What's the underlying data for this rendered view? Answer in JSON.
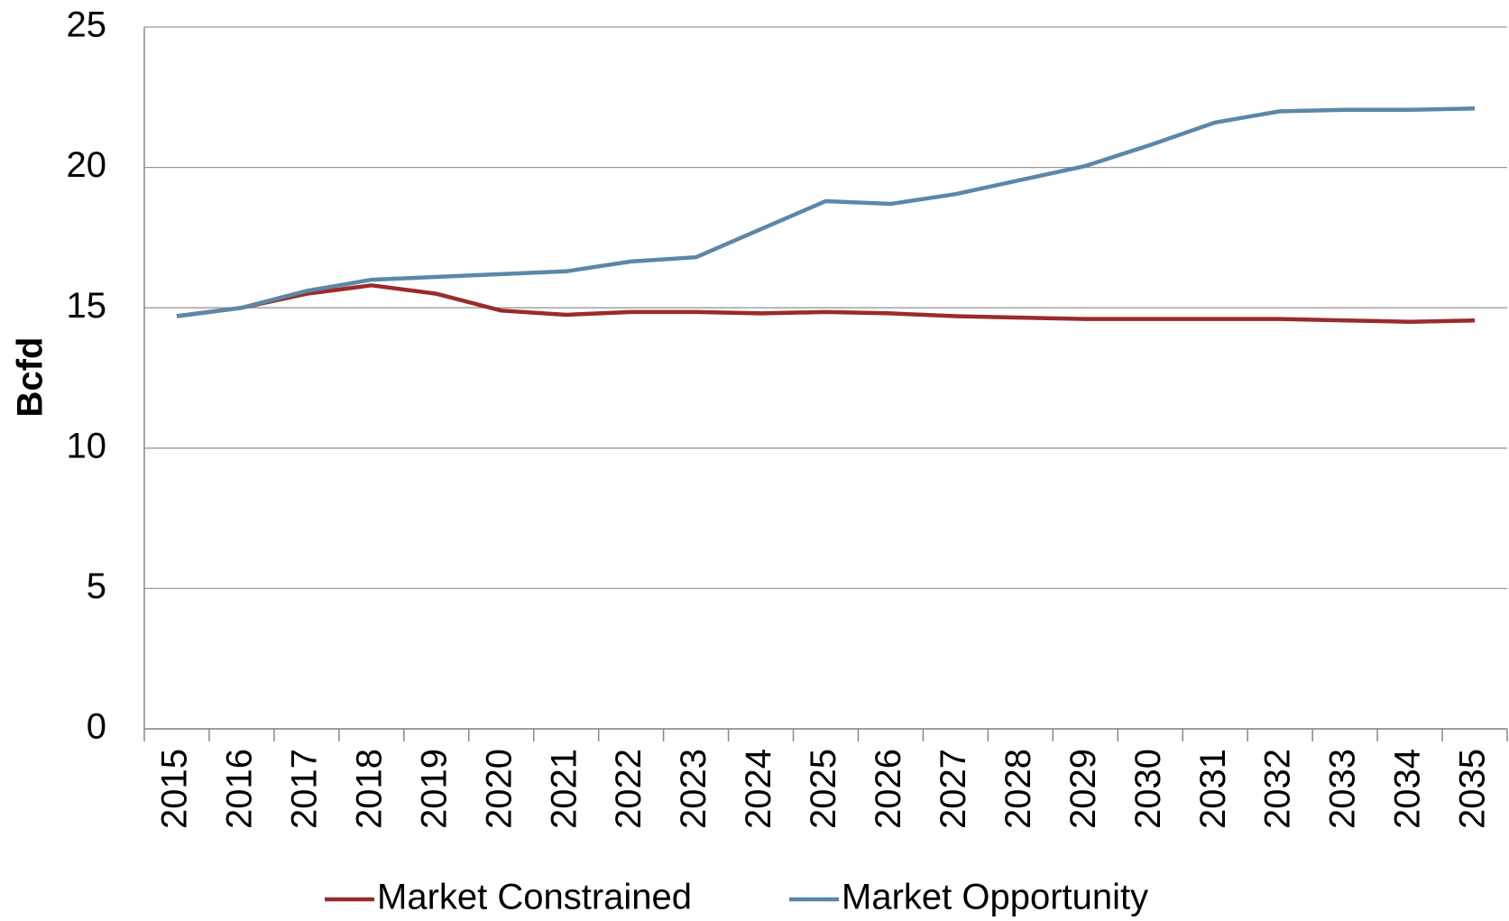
{
  "chart_data": {
    "type": "line",
    "y_label": "Bcfd",
    "categories": [
      "2015",
      "2016",
      "2017",
      "2018",
      "2019",
      "2020",
      "2021",
      "2022",
      "2023",
      "2024",
      "2025",
      "2026",
      "2027",
      "2028",
      "2029",
      "2030",
      "2031",
      "2032",
      "2033",
      "2034",
      "2035"
    ],
    "series": [
      {
        "name": "Market Constrained",
        "color": "#9b2a2a",
        "values": [
          14.7,
          15.0,
          15.5,
          15.8,
          15.5,
          14.9,
          14.75,
          14.85,
          14.85,
          14.8,
          14.85,
          14.8,
          14.7,
          14.65,
          14.6,
          14.6,
          14.6,
          14.6,
          14.55,
          14.5,
          14.55
        ]
      },
      {
        "name": "Market Opportunity",
        "color": "#5b87a8",
        "values": [
          14.7,
          15.0,
          15.6,
          16.0,
          16.1,
          16.2,
          16.3,
          16.65,
          16.8,
          17.8,
          18.8,
          18.7,
          19.05,
          19.55,
          20.05,
          20.8,
          21.6,
          22.0,
          22.05,
          22.05,
          22.1
        ]
      }
    ],
    "ylim": [
      0,
      25
    ],
    "yticks": [
      0,
      5,
      10,
      15,
      20,
      25
    ],
    "grid": true,
    "legend": "bottom"
  }
}
